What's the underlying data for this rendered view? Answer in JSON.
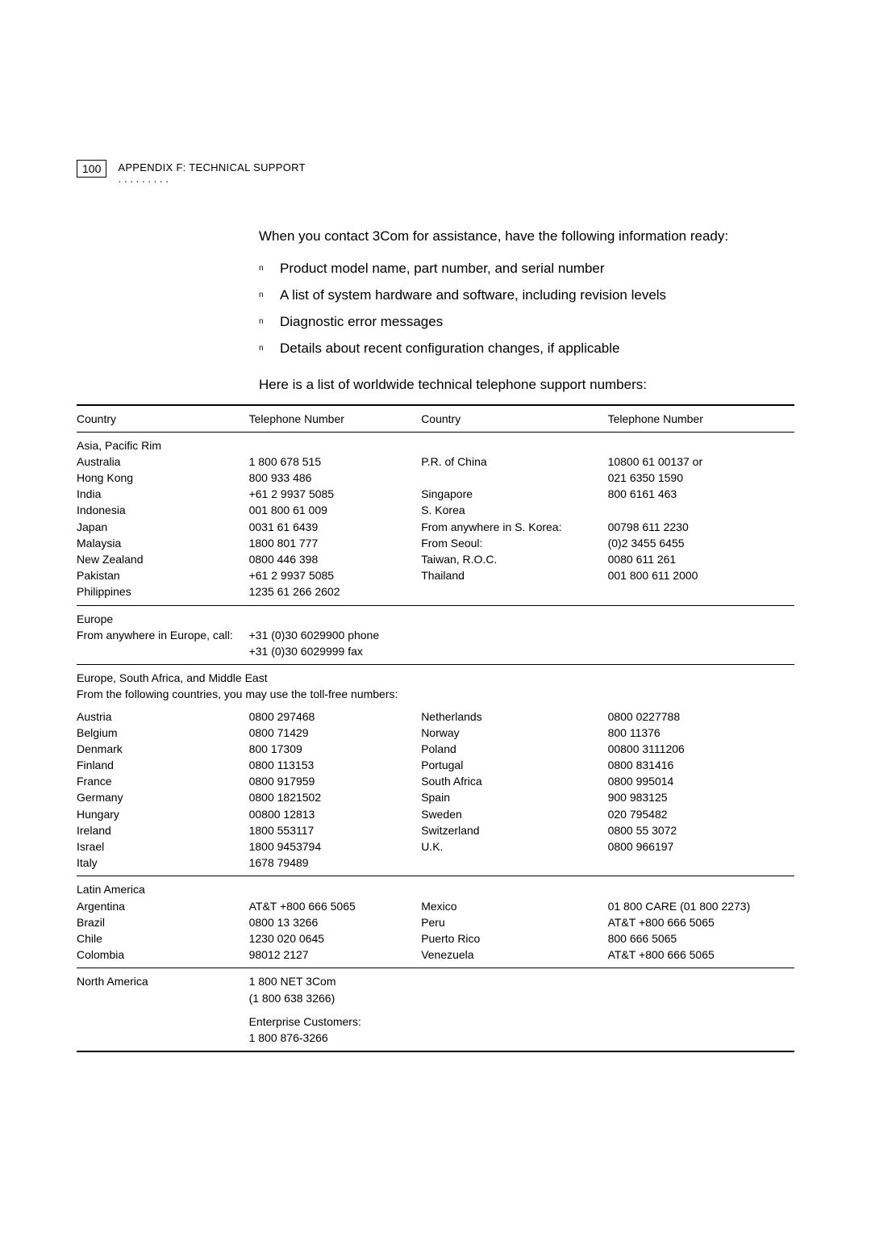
{
  "header": {
    "page_number": "100",
    "appendix_label": "APPENDIX",
    "appendix_letter": "F: T",
    "appendix_rest": "ECHNICAL",
    "support_s": "S",
    "support_rest": "UPPORT"
  },
  "intro": "When you contact 3Com for assistance, have the following information ready:",
  "bullets": [
    "Product model name, part number, and serial number",
    "A list of system hardware and software, including revision levels",
    "Diagnostic error messages",
    "Details about recent configuration changes, if applicable"
  ],
  "list_intro": "Here is a list of worldwide technical telephone support numbers:",
  "table_headers": {
    "country": "Country",
    "phone": "Telephone Number"
  },
  "asia": {
    "title": "Asia, Pacific Rim",
    "left": [
      {
        "c": "Australia",
        "p": "1 800 678 515"
      },
      {
        "c": "Hong Kong",
        "p": "800 933 486"
      },
      {
        "c": "India",
        "p": "+61 2 9937 5085"
      },
      {
        "c": "Indonesia",
        "p": "001 800 61 009"
      },
      {
        "c": "Japan",
        "p": "0031 61 6439"
      },
      {
        "c": "Malaysia",
        "p": "1800 801 777"
      },
      {
        "c": "New Zealand",
        "p": "0800 446 398"
      },
      {
        "c": "Pakistan",
        "p": "+61 2 9937 5085"
      },
      {
        "c": "Philippines",
        "p": "1235 61 266 2602"
      }
    ],
    "right": [
      {
        "c": "P.R. of China",
        "p": "10800 61 00137 or"
      },
      {
        "c": "",
        "p": "021 6350 1590"
      },
      {
        "c": "Singapore",
        "p": "800 6161 463"
      },
      {
        "c": "S. Korea",
        "p": ""
      },
      {
        "c": "From anywhere in S. Korea:",
        "p": "00798 611 2230",
        "indent": true
      },
      {
        "c": "From Seoul:",
        "p": "(0)2 3455 6455",
        "indent": true
      },
      {
        "c": "Taiwan, R.O.C.",
        "p": "0080 611 261"
      },
      {
        "c": "Thailand",
        "p": "001 800 611 2000"
      }
    ]
  },
  "europe_any": {
    "title": "Europe",
    "line": "From anywhere in Europe, call:",
    "phone1": "+31 (0)30 6029900 phone",
    "phone2": "+31 (0)30 6029999 fax"
  },
  "europe": {
    "title": "Europe, South Africa, and Middle East",
    "subtitle": "From the following countries, you may use the toll-free numbers:",
    "left": [
      {
        "c": "Austria",
        "p": "0800 297468"
      },
      {
        "c": "Belgium",
        "p": "0800 71429"
      },
      {
        "c": "Denmark",
        "p": "800 17309"
      },
      {
        "c": "Finland",
        "p": "0800 113153"
      },
      {
        "c": "France",
        "p": "0800 917959"
      },
      {
        "c": "Germany",
        "p": "0800 1821502"
      },
      {
        "c": "Hungary",
        "p": "00800 12813"
      },
      {
        "c": "Ireland",
        "p": "1800 553117"
      },
      {
        "c": "Israel",
        "p": "1800 9453794"
      },
      {
        "c": "Italy",
        "p": "1678 79489"
      }
    ],
    "right": [
      {
        "c": "Netherlands",
        "p": "0800 0227788"
      },
      {
        "c": "Norway",
        "p": "800 11376"
      },
      {
        "c": "Poland",
        "p": "00800 3111206"
      },
      {
        "c": "Portugal",
        "p": "0800 831416"
      },
      {
        "c": "South Africa",
        "p": "0800 995014"
      },
      {
        "c": "Spain",
        "p": "900 983125"
      },
      {
        "c": "Sweden",
        "p": "020 795482"
      },
      {
        "c": "Switzerland",
        "p": "0800 55 3072"
      },
      {
        "c": "U.K.",
        "p": "0800 966197"
      }
    ]
  },
  "latin": {
    "title": "Latin America",
    "left": [
      {
        "c": "Argentina",
        "p": "AT&T +800 666 5065"
      },
      {
        "c": "Brazil",
        "p": "0800 13 3266"
      },
      {
        "c": "Chile",
        "p": "1230 020 0645"
      },
      {
        "c": "Colombia",
        "p": "98012 2127"
      }
    ],
    "right": [
      {
        "c": "Mexico",
        "p": "01 800 CARE (01 800 2273)"
      },
      {
        "c": "Peru",
        "p": "AT&T +800 666 5065"
      },
      {
        "c": "Puerto Rico",
        "p": "800 666 5065"
      },
      {
        "c": "Venezuela",
        "p": "AT&T +800 666 5065"
      }
    ]
  },
  "north_america": {
    "title": "North America",
    "phone1": "1 800 NET 3Com",
    "phone2": "(1 800 638 3266)",
    "ent_label": "Enterprise Customers:",
    "ent_phone": "1 800 876-3266"
  }
}
